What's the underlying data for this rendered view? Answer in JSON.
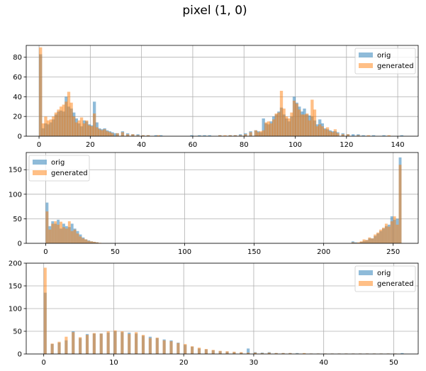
{
  "figure": {
    "title": "pixel (1, 0)"
  },
  "colors": {
    "orig": "#1f77b4",
    "generated": "#ff7f0e",
    "grid": "#b0b0b0",
    "axes": "#000000"
  },
  "chart_data": [
    {
      "type": "histogram",
      "xlim": [
        -5,
        148
      ],
      "ylim": [
        0,
        92
      ],
      "xticks": [
        0,
        20,
        40,
        60,
        80,
        100,
        120,
        140
      ],
      "yticks": [
        0,
        20,
        40,
        60,
        80
      ],
      "bin_width": 1.2,
      "grid": true,
      "legend": "top-right",
      "series": [
        {
          "name": "orig",
          "x": [
            0,
            1,
            2,
            3,
            4,
            5,
            6,
            7,
            8,
            9,
            10,
            11,
            12,
            13,
            14,
            15,
            16,
            17,
            18,
            19,
            20,
            21,
            22,
            23,
            24,
            25,
            26,
            27,
            28,
            29,
            30,
            32,
            34,
            36,
            38,
            40,
            42,
            45,
            47,
            59,
            62,
            64,
            66,
            70,
            74,
            76,
            78,
            80,
            82,
            84,
            85,
            86,
            87,
            88,
            89,
            90,
            91,
            92,
            93,
            94,
            95,
            96,
            97,
            98,
            99,
            100,
            101,
            102,
            103,
            104,
            105,
            106,
            107,
            108,
            109,
            110,
            111,
            112,
            113,
            114,
            115,
            116,
            118,
            120,
            122,
            124,
            126,
            130,
            134,
            141
          ],
          "values": [
            83,
            8,
            13,
            12,
            14,
            17,
            22,
            25,
            26,
            25,
            40,
            30,
            28,
            24,
            18,
            13,
            10,
            16,
            15,
            12,
            11,
            35,
            14,
            8,
            7,
            8,
            6,
            5,
            4,
            3,
            3,
            5,
            3,
            2,
            2,
            1,
            1,
            1,
            1,
            1,
            1,
            1,
            1,
            1,
            1,
            1,
            2,
            3,
            5,
            6,
            5,
            4,
            18,
            13,
            12,
            15,
            20,
            22,
            25,
            29,
            22,
            18,
            15,
            20,
            40,
            34,
            30,
            25,
            28,
            22,
            21,
            20,
            16,
            12,
            17,
            13,
            8,
            7,
            6,
            5,
            5,
            4,
            3,
            2,
            2,
            2,
            1,
            1,
            1,
            1
          ]
        },
        {
          "name": "generated",
          "x": [
            0,
            1,
            2,
            3,
            4,
            5,
            6,
            7,
            8,
            9,
            10,
            11,
            12,
            13,
            14,
            15,
            16,
            17,
            18,
            19,
            20,
            21,
            22,
            23,
            24,
            25,
            26,
            27,
            28,
            30,
            32,
            34,
            36,
            38,
            40,
            42,
            46,
            70,
            72,
            74,
            76,
            78,
            80,
            82,
            84,
            85,
            86,
            87,
            88,
            89,
            90,
            91,
            92,
            93,
            94,
            95,
            96,
            97,
            98,
            99,
            100,
            101,
            102,
            103,
            104,
            105,
            106,
            107,
            108,
            109,
            110,
            111,
            112,
            113,
            114,
            115,
            116,
            118,
            120,
            124,
            128,
            136
          ],
          "values": [
            90,
            13,
            20,
            16,
            17,
            20,
            24,
            27,
            30,
            32,
            35,
            45,
            34,
            20,
            14,
            16,
            19,
            13,
            16,
            11,
            10,
            23,
            9,
            7,
            6,
            7,
            5,
            4,
            3,
            3,
            4,
            2,
            2,
            1,
            1,
            1,
            1,
            1,
            1,
            1,
            1,
            1,
            2,
            4,
            6,
            4,
            5,
            6,
            14,
            15,
            13,
            17,
            23,
            24,
            46,
            28,
            20,
            18,
            24,
            36,
            33,
            27,
            22,
            22,
            23,
            16,
            37,
            27,
            10,
            12,
            10,
            7,
            9,
            5,
            4,
            7,
            3,
            2,
            2,
            1,
            1,
            1
          ]
        }
      ]
    },
    {
      "type": "histogram",
      "xlim": [
        -14,
        268
      ],
      "ylim": [
        0,
        185
      ],
      "xticks": [
        0,
        50,
        100,
        150,
        200,
        250
      ],
      "yticks": [
        0,
        50,
        100,
        150
      ],
      "bin_width": 2,
      "grid": true,
      "legend": "top-left",
      "series": [
        {
          "name": "orig",
          "x": [
            0,
            2,
            4,
            6,
            8,
            10,
            12,
            14,
            16,
            18,
            20,
            22,
            24,
            26,
            28,
            30,
            32,
            34,
            36,
            220,
            222,
            224,
            226,
            228,
            230,
            232,
            234,
            236,
            238,
            240,
            242,
            244,
            246,
            248,
            250,
            252,
            254
          ],
          "values": [
            83,
            35,
            45,
            40,
            48,
            30,
            40,
            35,
            33,
            40,
            30,
            25,
            18,
            12,
            8,
            6,
            4,
            3,
            2,
            4,
            2,
            1,
            3,
            5,
            6,
            10,
            10,
            15,
            20,
            25,
            30,
            35,
            38,
            55,
            48,
            50,
            175
          ]
        },
        {
          "name": "generated",
          "x": [
            0,
            2,
            4,
            6,
            8,
            10,
            12,
            14,
            16,
            18,
            20,
            22,
            24,
            26,
            28,
            30,
            32,
            34,
            36,
            38,
            220,
            222,
            224,
            226,
            228,
            230,
            232,
            234,
            236,
            238,
            240,
            242,
            244,
            246,
            248,
            250,
            252,
            254
          ],
          "values": [
            65,
            28,
            40,
            45,
            38,
            44,
            33,
            30,
            45,
            25,
            28,
            20,
            14,
            10,
            8,
            5,
            4,
            3,
            2,
            1,
            2,
            1,
            2,
            4,
            8,
            7,
            12,
            10,
            18,
            22,
            28,
            32,
            40,
            34,
            45,
            55,
            38,
            160
          ]
        }
      ]
    },
    {
      "type": "histogram",
      "xlim": [
        -2.5,
        53.5
      ],
      "ylim": [
        0,
        200
      ],
      "xticks": [
        0,
        10,
        20,
        30,
        40,
        50
      ],
      "yticks": [
        0,
        50,
        100,
        150,
        200
      ],
      "bin_width": 0.42,
      "grid": true,
      "legend": "top-right",
      "series": [
        {
          "name": "orig",
          "x": [
            0,
            1,
            2,
            3,
            4,
            5,
            6,
            7,
            8,
            9,
            10,
            11,
            12,
            13,
            14,
            15,
            16,
            17,
            18,
            19,
            20,
            21,
            22,
            23,
            24,
            25,
            26,
            27,
            28,
            29,
            30,
            31,
            32,
            33,
            34,
            35,
            36,
            37,
            38,
            39,
            40,
            41,
            42,
            43,
            44,
            45,
            46,
            47,
            48,
            49,
            50,
            51
          ],
          "values": [
            135,
            22,
            25,
            30,
            50,
            35,
            44,
            45,
            45,
            47,
            50,
            48,
            47,
            45,
            40,
            38,
            35,
            32,
            30,
            25,
            20,
            16,
            12,
            10,
            8,
            6,
            5,
            4,
            3,
            12,
            4,
            3,
            4,
            2,
            2,
            2,
            2,
            1,
            1,
            1,
            1,
            1,
            1,
            1,
            1,
            1,
            1,
            1,
            1,
            1,
            1,
            2
          ]
        },
        {
          "name": "generated",
          "x": [
            0,
            1,
            2,
            3,
            4,
            5,
            6,
            7,
            8,
            9,
            10,
            11,
            12,
            13,
            14,
            15,
            16,
            17,
            18,
            19,
            20,
            21,
            22,
            23,
            24,
            25,
            26,
            27,
            28,
            29,
            30,
            31,
            32,
            33,
            34,
            35,
            36,
            37,
            38,
            39,
            40,
            41,
            42,
            43,
            44,
            45,
            46,
            47,
            48,
            49,
            50
          ],
          "values": [
            190,
            23,
            27,
            38,
            48,
            37,
            42,
            46,
            45,
            50,
            52,
            50,
            44,
            48,
            42,
            35,
            36,
            30,
            28,
            24,
            22,
            17,
            14,
            11,
            9,
            7,
            6,
            5,
            4,
            3,
            3,
            2,
            3,
            2,
            2,
            2,
            1,
            2,
            1,
            1,
            1,
            1,
            1,
            1,
            1,
            1,
            1,
            1,
            1,
            1,
            1
          ]
        }
      ]
    }
  ]
}
